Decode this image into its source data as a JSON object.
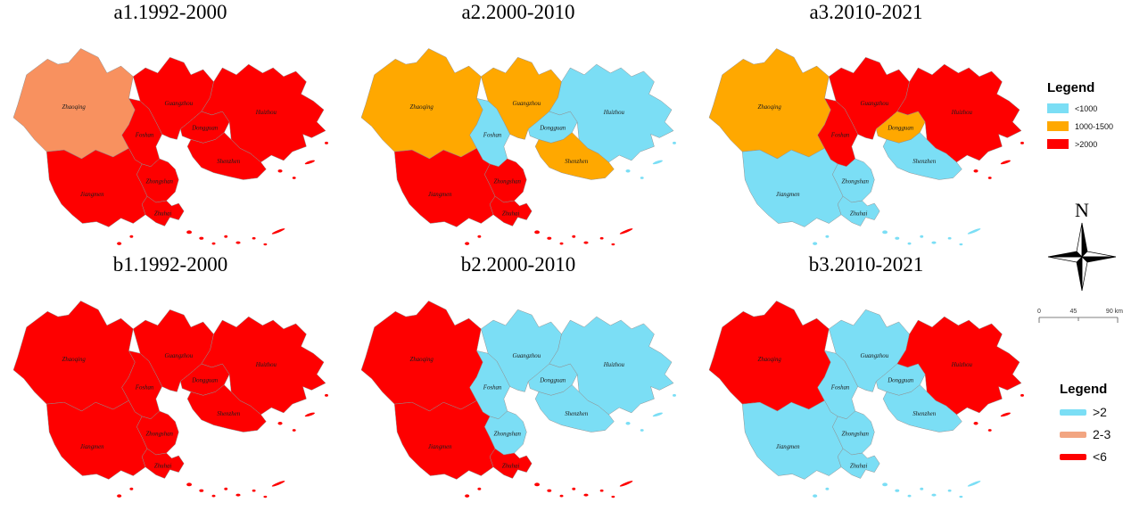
{
  "panels": [
    {
      "id": "a1",
      "title": "a1.1992-2000",
      "regions": {
        "Zhaoqing": "salmon",
        "Guangzhou": "red",
        "Foshan": "red",
        "Huizhou": "red",
        "Dongguan": "red",
        "Shenzhen": "red",
        "Zhongshan": "red",
        "Jiangmen": "red",
        "Zhuhai": "red"
      }
    },
    {
      "id": "a2",
      "title": "a2.2000-2010",
      "regions": {
        "Zhaoqing": "orange",
        "Guangzhou": "orange",
        "Foshan": "cyan",
        "Huizhou": "cyan",
        "Dongguan": "cyan",
        "Shenzhen": "orange",
        "Zhongshan": "red",
        "Jiangmen": "red",
        "Zhuhai": "red"
      }
    },
    {
      "id": "a3",
      "title": "a3.2010-2021",
      "regions": {
        "Zhaoqing": "orange",
        "Guangzhou": "red",
        "Foshan": "red",
        "Huizhou": "red",
        "Dongguan": "orange",
        "Shenzhen": "cyan",
        "Zhongshan": "cyan",
        "Jiangmen": "cyan",
        "Zhuhai": "cyan"
      }
    },
    {
      "id": "b1",
      "title": "b1.1992-2000",
      "regions": {
        "Zhaoqing": "red",
        "Guangzhou": "red",
        "Foshan": "red",
        "Huizhou": "red",
        "Dongguan": "red",
        "Shenzhen": "red",
        "Zhongshan": "red",
        "Jiangmen": "red",
        "Zhuhai": "red"
      }
    },
    {
      "id": "b2",
      "title": "b2.2000-2010",
      "regions": {
        "Zhaoqing": "red",
        "Guangzhou": "cyan",
        "Foshan": "cyan",
        "Huizhou": "cyan",
        "Dongguan": "cyan",
        "Shenzhen": "cyan",
        "Zhongshan": "cyan",
        "Jiangmen": "red",
        "Zhuhai": "red"
      }
    },
    {
      "id": "b3",
      "title": "b3.2010-2021",
      "regions": {
        "Zhaoqing": "red",
        "Guangzhou": "cyan",
        "Foshan": "cyan",
        "Huizhou": "red",
        "Dongguan": "cyan",
        "Shenzhen": "cyan",
        "Zhongshan": "cyan",
        "Jiangmen": "cyan",
        "Zhuhai": "cyan"
      }
    }
  ],
  "cities": [
    "Zhaoqing",
    "Guangzhou",
    "Foshan",
    "Huizhou",
    "Dongguan",
    "Shenzhen",
    "Zhongshan",
    "Jiangmen",
    "Zhuhai"
  ],
  "colors": {
    "red": "#fe0000",
    "cyan": "#7bdef5",
    "orange": "#ffa800",
    "salmon": "#f8915f",
    "salmon_light": "#f2a581"
  },
  "legend_top": {
    "title": "Legend",
    "items": [
      {
        "label": "<1000",
        "color": "cyan"
      },
      {
        "label": "1000-1500",
        "color": "orange"
      },
      {
        "label": ">2000",
        "color": "red"
      }
    ]
  },
  "legend_bottom": {
    "title": "Legend",
    "items": [
      {
        "label": ">2",
        "color": "cyan"
      },
      {
        "label": "2-3",
        "color": "salmon_light"
      },
      {
        "label": "<6",
        "color": "red"
      }
    ]
  },
  "compass": {
    "label": "N"
  },
  "scale_bar": {
    "labels": [
      "0",
      "45",
      "90 km"
    ]
  }
}
